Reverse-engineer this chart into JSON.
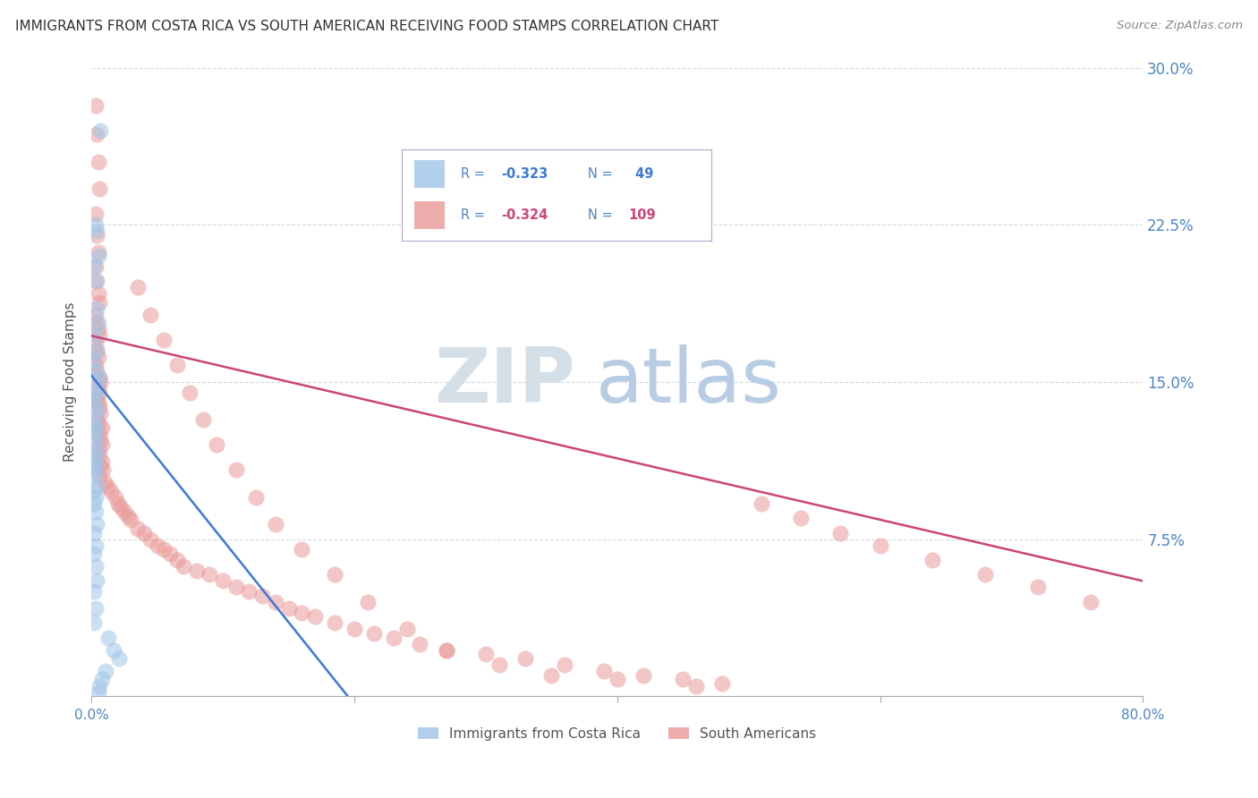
{
  "title": "IMMIGRANTS FROM COSTA RICA VS SOUTH AMERICAN RECEIVING FOOD STAMPS CORRELATION CHART",
  "source": "Source: ZipAtlas.com",
  "ylabel": "Receiving Food Stamps",
  "ytick_labels": [
    "",
    "7.5%",
    "15.0%",
    "22.5%",
    "30.0%"
  ],
  "yticks": [
    0.0,
    0.075,
    0.15,
    0.225,
    0.3
  ],
  "xlim": [
    0.0,
    0.8
  ],
  "ylim": [
    0.0,
    0.3
  ],
  "color_blue": "#9fc5e8",
  "color_pink": "#ea9999",
  "color_blue_line": "#3c78d8",
  "color_pink_line": "#cc4478",
  "color_axis": "#4a86c8",
  "watermark_zip": "#d0d8e8",
  "watermark_atlas": "#b8cce4",
  "cr_line_x": [
    0.0,
    0.195
  ],
  "cr_line_y": [
    0.153,
    0.0
  ],
  "sa_line_x": [
    0.0,
    0.8
  ],
  "sa_line_y": [
    0.172,
    0.055
  ],
  "costa_rica_x": [
    0.007,
    0.003,
    0.004,
    0.005,
    0.002,
    0.003,
    0.004,
    0.005,
    0.003,
    0.004,
    0.002,
    0.003,
    0.005,
    0.004,
    0.003,
    0.002,
    0.003,
    0.004,
    0.002,
    0.003,
    0.002,
    0.003,
    0.004,
    0.003,
    0.002,
    0.003,
    0.002,
    0.003,
    0.004,
    0.002,
    0.003,
    0.002,
    0.003,
    0.004,
    0.002,
    0.003,
    0.002,
    0.003,
    0.004,
    0.002,
    0.003,
    0.002,
    0.013,
    0.017,
    0.021,
    0.011,
    0.008,
    0.006,
    0.005
  ],
  "costa_rica_y": [
    0.27,
    0.225,
    0.222,
    0.21,
    0.205,
    0.198,
    0.185,
    0.178,
    0.172,
    0.165,
    0.16,
    0.155,
    0.152,
    0.148,
    0.145,
    0.142,
    0.138,
    0.135,
    0.13,
    0.128,
    0.125,
    0.122,
    0.118,
    0.115,
    0.112,
    0.11,
    0.108,
    0.105,
    0.1,
    0.098,
    0.095,
    0.092,
    0.088,
    0.082,
    0.078,
    0.072,
    0.068,
    0.062,
    0.055,
    0.05,
    0.042,
    0.035,
    0.028,
    0.022,
    0.018,
    0.012,
    0.008,
    0.005,
    0.002
  ],
  "south_american_x": [
    0.003,
    0.004,
    0.005,
    0.006,
    0.003,
    0.004,
    0.005,
    0.003,
    0.004,
    0.005,
    0.006,
    0.003,
    0.004,
    0.005,
    0.006,
    0.003,
    0.004,
    0.005,
    0.003,
    0.004,
    0.006,
    0.007,
    0.005,
    0.006,
    0.004,
    0.005,
    0.006,
    0.007,
    0.004,
    0.005,
    0.008,
    0.006,
    0.007,
    0.008,
    0.005,
    0.006,
    0.008,
    0.007,
    0.009,
    0.006,
    0.01,
    0.012,
    0.015,
    0.018,
    0.02,
    0.022,
    0.025,
    0.028,
    0.03,
    0.035,
    0.04,
    0.045,
    0.05,
    0.055,
    0.06,
    0.065,
    0.07,
    0.08,
    0.09,
    0.1,
    0.11,
    0.12,
    0.13,
    0.14,
    0.15,
    0.16,
    0.17,
    0.185,
    0.2,
    0.215,
    0.23,
    0.25,
    0.27,
    0.3,
    0.33,
    0.36,
    0.39,
    0.42,
    0.45,
    0.48,
    0.51,
    0.54,
    0.57,
    0.6,
    0.64,
    0.68,
    0.72,
    0.76,
    0.035,
    0.045,
    0.055,
    0.065,
    0.075,
    0.085,
    0.095,
    0.11,
    0.125,
    0.14,
    0.16,
    0.185,
    0.21,
    0.24,
    0.27,
    0.31,
    0.35,
    0.4,
    0.46
  ],
  "south_american_y": [
    0.282,
    0.268,
    0.255,
    0.242,
    0.23,
    0.22,
    0.212,
    0.205,
    0.198,
    0.192,
    0.188,
    0.182,
    0.178,
    0.175,
    0.172,
    0.168,
    0.165,
    0.162,
    0.158,
    0.155,
    0.152,
    0.15,
    0.148,
    0.145,
    0.142,
    0.14,
    0.138,
    0.135,
    0.132,
    0.13,
    0.128,
    0.125,
    0.122,
    0.12,
    0.118,
    0.115,
    0.112,
    0.11,
    0.108,
    0.105,
    0.102,
    0.1,
    0.098,
    0.095,
    0.092,
    0.09,
    0.088,
    0.086,
    0.084,
    0.08,
    0.078,
    0.075,
    0.072,
    0.07,
    0.068,
    0.065,
    0.062,
    0.06,
    0.058,
    0.055,
    0.052,
    0.05,
    0.048,
    0.045,
    0.042,
    0.04,
    0.038,
    0.035,
    0.032,
    0.03,
    0.028,
    0.025,
    0.022,
    0.02,
    0.018,
    0.015,
    0.012,
    0.01,
    0.008,
    0.006,
    0.092,
    0.085,
    0.078,
    0.072,
    0.065,
    0.058,
    0.052,
    0.045,
    0.195,
    0.182,
    0.17,
    0.158,
    0.145,
    0.132,
    0.12,
    0.108,
    0.095,
    0.082,
    0.07,
    0.058,
    0.045,
    0.032,
    0.022,
    0.015,
    0.01,
    0.008,
    0.005
  ]
}
